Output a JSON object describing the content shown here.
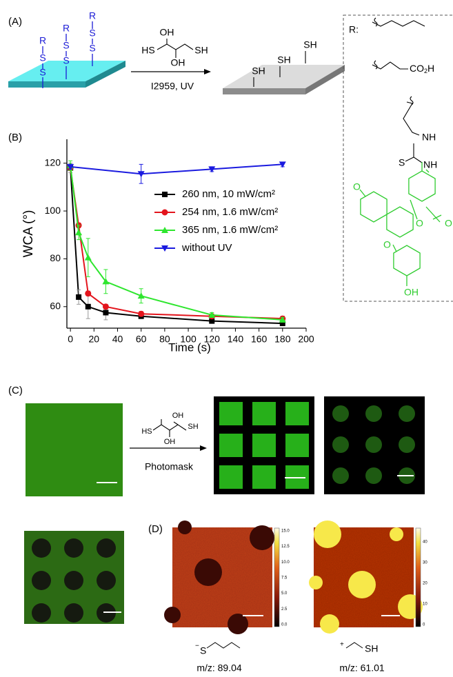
{
  "panels": {
    "a": "(A)",
    "b": "(B)",
    "c": "(C)",
    "d": "(D)"
  },
  "scheme_a": {
    "surface_labels": [
      "R",
      "S",
      "S",
      "R",
      "S",
      "S",
      "R",
      "S",
      "S"
    ],
    "reagent": [
      "OH",
      "HS",
      "SH",
      "OH"
    ],
    "conditions": "I2959, UV",
    "product_labels": [
      "SH",
      "SH",
      "SH"
    ]
  },
  "r_groups": {
    "label": "R:",
    "acid": "CO",
    "acid_sub": "2",
    "acid_end": "H",
    "fluorescein_labels": [
      "NH",
      "S",
      "NH",
      "O",
      "O",
      "O",
      "O",
      "OH"
    ]
  },
  "chart_data": {
    "type": "line",
    "x_label": "Time (s)",
    "y_label": "WCA (°)",
    "xlim": [
      -3,
      200
    ],
    "xticks": [
      0,
      20,
      40,
      60,
      80,
      100,
      120,
      140,
      160,
      180,
      200
    ],
    "ylim": [
      51,
      130
    ],
    "yticks": [
      60,
      80,
      100,
      120
    ],
    "legend": "center right",
    "series": [
      {
        "name": "260 nm, 10 mW/cm²",
        "color": "#000000",
        "marker": "square",
        "x": [
          0,
          7,
          15,
          30,
          60,
          120,
          180
        ],
        "values": [
          118,
          64,
          60,
          57.5,
          56,
          54,
          53
        ],
        "errors": [
          2,
          3,
          5,
          3,
          1,
          1,
          1
        ]
      },
      {
        "name": "254 nm, 1.6 mW/cm²",
        "color": "#e3141c",
        "marker": "circle",
        "x": [
          0,
          7,
          15,
          30,
          60,
          120,
          180
        ],
        "values": [
          118,
          94,
          65.5,
          60,
          57,
          56,
          55
        ],
        "errors": [
          1,
          1,
          1,
          1,
          1,
          1,
          1
        ]
      },
      {
        "name": "365 nm, 1.6 mW/cm²",
        "color": "#2ee62e",
        "marker": "triangle-up",
        "x": [
          0,
          7,
          15,
          30,
          60,
          120,
          180
        ],
        "values": [
          119,
          91,
          80.5,
          70.5,
          64.5,
          56.5,
          54.5
        ],
        "errors": [
          2,
          3,
          8,
          5,
          3,
          1,
          1
        ]
      },
      {
        "name": "without UV",
        "color": "#1a1adf",
        "marker": "triangle-down",
        "x": [
          0,
          60,
          120,
          180
        ],
        "values": [
          118.5,
          115.5,
          117.5,
          119.5
        ],
        "errors": [
          1,
          4,
          1,
          1
        ]
      }
    ]
  },
  "scheme_c": {
    "reagent": [
      "OH",
      "HS",
      "OH",
      "SH"
    ],
    "conditions": "Photomask"
  },
  "panel_d": {
    "colorbar_1": [
      "15.0",
      "12.5",
      "10.0",
      "7.5",
      "5.0",
      "2.5",
      "0.0"
    ],
    "colorbar_2": [
      "40",
      "30",
      "20",
      "10",
      "0"
    ],
    "fragment_1": {
      "charge": "−",
      "atom": "S",
      "mz": "m/z: 89.04"
    },
    "fragment_2": {
      "charge": "+",
      "atom": "SH",
      "mz": "m/z: 61.01"
    }
  }
}
